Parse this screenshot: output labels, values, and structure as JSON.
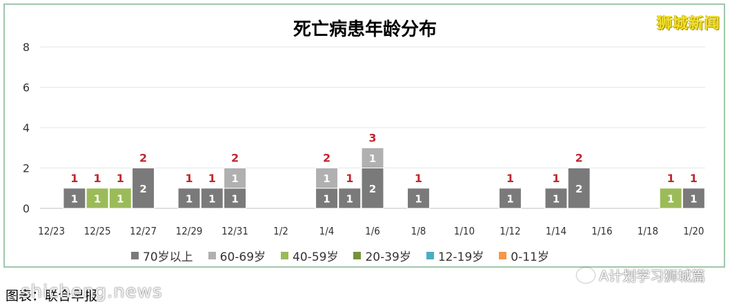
{
  "brand": "狮城新闻",
  "source_text": "图表：联合早报",
  "watermark_site": "shicheng.news",
  "wechat_text": "A计划学习狮城篇",
  "chart_data": {
    "type": "bar",
    "stacked": true,
    "title": "死亡病患年龄分布",
    "xlabel": "",
    "ylabel": "",
    "ylim": [
      0,
      8
    ],
    "yticks": [
      0,
      2,
      4,
      6,
      8
    ],
    "grid": true,
    "legend_position": "bottom",
    "categories": [
      "12/23",
      "12/24",
      "12/25",
      "12/26",
      "12/27",
      "12/28",
      "12/29",
      "12/30",
      "12/31",
      "1/1",
      "1/2",
      "1/3",
      "1/4",
      "1/5",
      "1/6",
      "1/7",
      "1/8",
      "1/9",
      "1/10",
      "1/11",
      "1/12",
      "1/13",
      "1/14",
      "1/15",
      "1/16",
      "1/17",
      "1/18",
      "1/19",
      "1/20"
    ],
    "tick_labels": [
      "12/23",
      "12/25",
      "12/27",
      "12/29",
      "12/31",
      "1/2",
      "1/4",
      "1/6",
      "1/8",
      "1/10",
      "1/12",
      "1/14",
      "1/16",
      "1/18",
      "1/20"
    ],
    "series": [
      {
        "name": "70岁以上",
        "color": "#7a7a7a",
        "values": [
          0,
          1,
          0,
          0,
          2,
          0,
          1,
          1,
          1,
          0,
          0,
          0,
          1,
          1,
          2,
          0,
          1,
          0,
          0,
          0,
          1,
          0,
          1,
          2,
          0,
          0,
          0,
          0,
          1
        ]
      },
      {
        "name": "60-69岁",
        "color": "#b0b0b0",
        "values": [
          0,
          0,
          0,
          0,
          0,
          0,
          0,
          0,
          1,
          0,
          0,
          0,
          1,
          0,
          1,
          0,
          0,
          0,
          0,
          0,
          0,
          0,
          0,
          0,
          0,
          0,
          0,
          0,
          0
        ]
      },
      {
        "name": "40-59岁",
        "color": "#9bbb59",
        "values": [
          0,
          0,
          1,
          1,
          0,
          0,
          0,
          0,
          0,
          0,
          0,
          0,
          0,
          0,
          0,
          0,
          0,
          0,
          0,
          0,
          0,
          0,
          0,
          0,
          0,
          0,
          0,
          1,
          0
        ]
      },
      {
        "name": "20-39岁",
        "color": "#76923c",
        "values": [
          0,
          0,
          0,
          0,
          0,
          0,
          0,
          0,
          0,
          0,
          0,
          0,
          0,
          0,
          0,
          0,
          0,
          0,
          0,
          0,
          0,
          0,
          0,
          0,
          0,
          0,
          0,
          0,
          0
        ]
      },
      {
        "name": "12-19岁",
        "color": "#4bacc6",
        "values": [
          0,
          0,
          0,
          0,
          0,
          0,
          0,
          0,
          0,
          0,
          0,
          0,
          0,
          0,
          0,
          0,
          0,
          0,
          0,
          0,
          0,
          0,
          0,
          0,
          0,
          0,
          0,
          0,
          0
        ]
      },
      {
        "name": "0-11岁",
        "color": "#f79646",
        "values": [
          0,
          0,
          0,
          0,
          0,
          0,
          0,
          0,
          0,
          0,
          0,
          0,
          0,
          0,
          0,
          0,
          0,
          0,
          0,
          0,
          0,
          0,
          0,
          0,
          0,
          0,
          0,
          0,
          0
        ]
      }
    ],
    "totals": [
      0,
      1,
      1,
      1,
      2,
      0,
      1,
      1,
      2,
      0,
      0,
      0,
      2,
      1,
      3,
      0,
      1,
      0,
      0,
      0,
      1,
      0,
      1,
      2,
      0,
      0,
      0,
      1,
      1
    ],
    "total_label_color": "#c0262d"
  }
}
